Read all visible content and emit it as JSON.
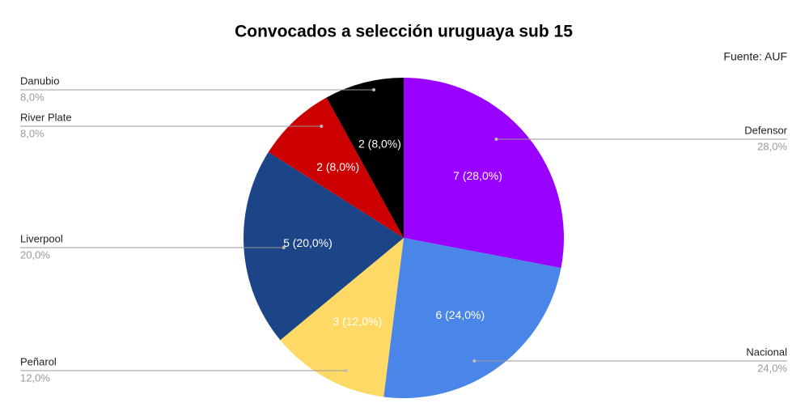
{
  "chart_data": {
    "type": "pie",
    "title": "Convocados a selección uruguaya sub 15",
    "source": "Fuente: AUF",
    "categories": [
      "Defensor",
      "Nacional",
      "Peñarol",
      "Liverpool",
      "River Plate",
      "Danubio"
    ],
    "values": [
      7,
      6,
      3,
      5,
      2,
      2
    ],
    "value_labels": [
      "7 (28,0%)",
      "6 (24,0%)",
      "3 (12,0%)",
      "5 (20,0%)",
      "2 (8,0%)",
      "2 (8,0%)"
    ],
    "percent_labels": [
      "28,0%",
      "24,0%",
      "12,0%",
      "20,0%",
      "8,0%",
      "8,0%"
    ],
    "colors": [
      "#9900ff",
      "#4a86e8",
      "#ffd966",
      "#1c4587",
      "#cc0000",
      "#000000"
    ]
  }
}
